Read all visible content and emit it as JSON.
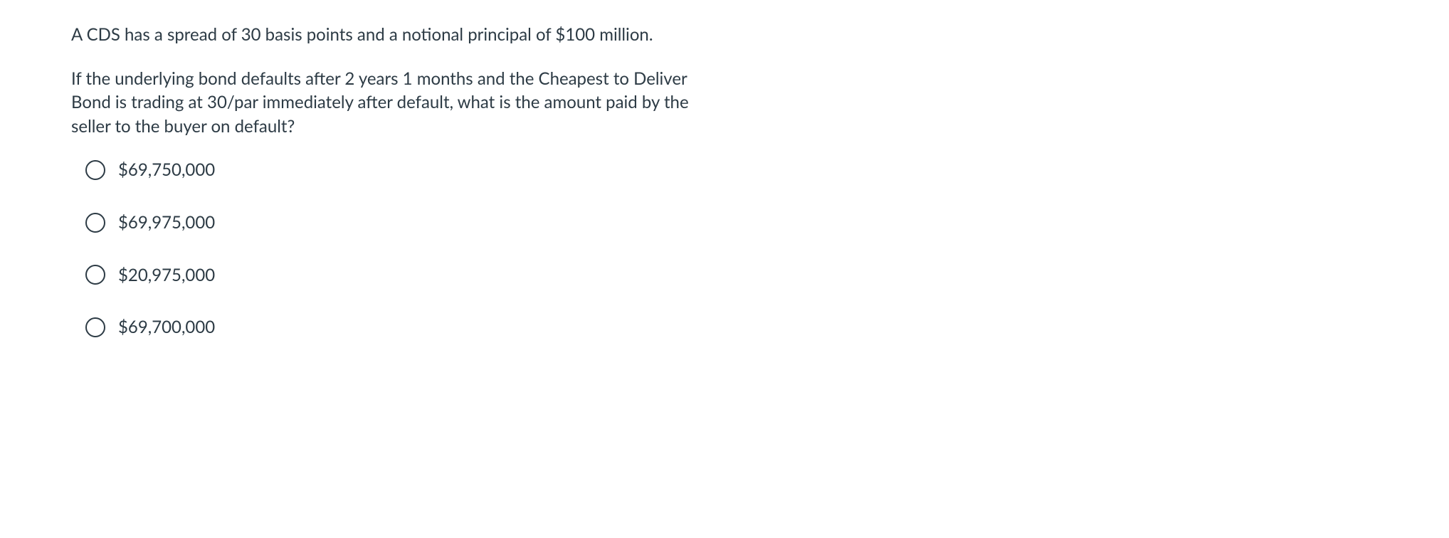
{
  "question": {
    "paragraph1": "A CDS has a spread of 30 basis points and a notional principal of $100 million.",
    "paragraph2": "If the underlying bond defaults after 2 years 1 months and the Cheapest to Deliver Bond is trading at 30/par immediately after default, what is the amount paid by the seller to the buyer on default?"
  },
  "options": [
    {
      "label": "$69,750,000"
    },
    {
      "label": "$69,975,000"
    },
    {
      "label": "$20,975,000"
    },
    {
      "label": "$69,700,000"
    }
  ],
  "style": {
    "text_color": "#2d3b45",
    "background_color": "#ffffff",
    "font_size": 24,
    "radio_border_color": "#2d3b45",
    "radio_size": 28
  }
}
